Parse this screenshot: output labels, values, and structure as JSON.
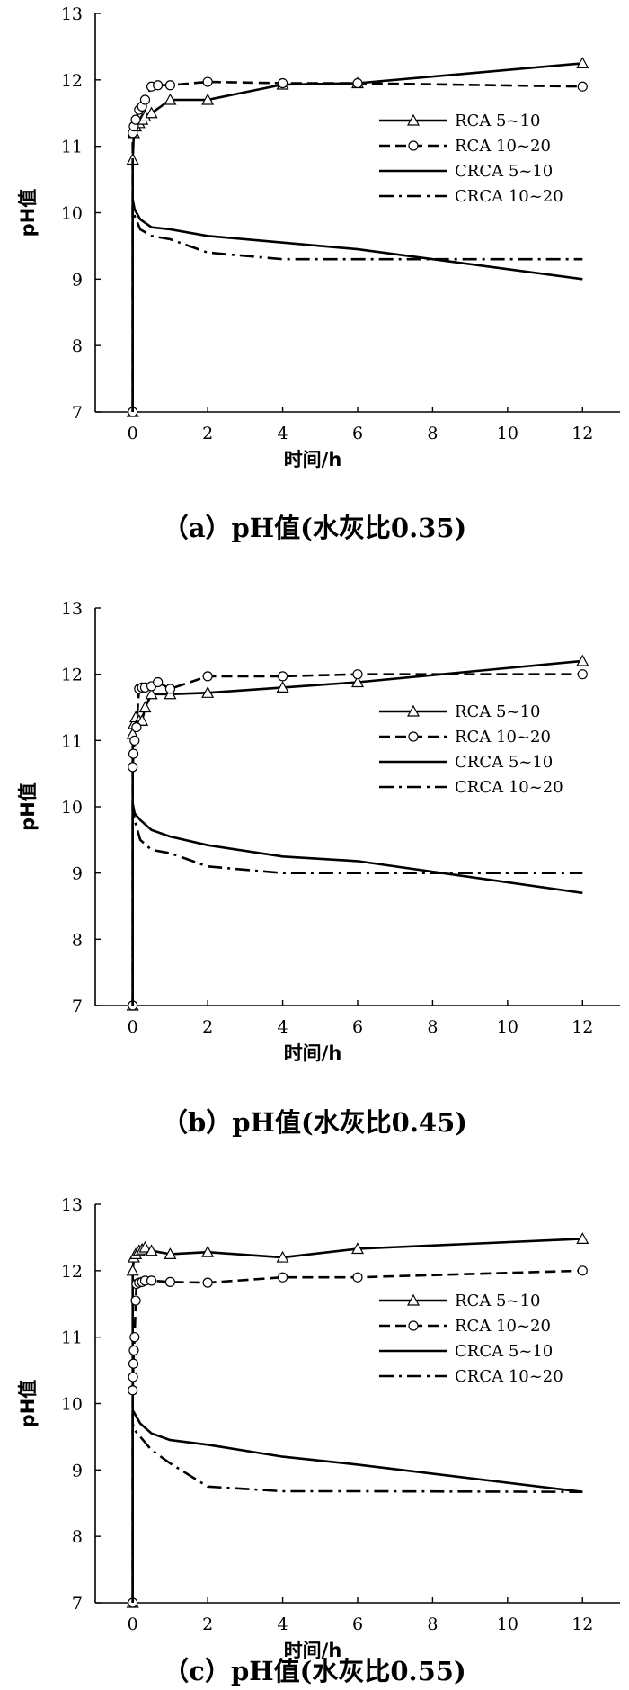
{
  "chart_data": [
    {
      "type": "line",
      "caption": "（a）pH值(水灰比0.35)",
      "xlabel": "时间/h",
      "ylabel": "pH值",
      "xlim": [
        -1,
        13
      ],
      "ylim": [
        7,
        13
      ],
      "xticks": [
        0,
        2,
        4,
        6,
        8,
        10,
        12
      ],
      "yticks": [
        7,
        8,
        9,
        10,
        11,
        12,
        13
      ],
      "grid": false,
      "legend_position": "right",
      "series": [
        {
          "name": "RCA 5~10",
          "style": "solid",
          "marker": "triangle",
          "x": [
            0,
            0,
            0.03,
            0.08,
            0.17,
            0.25,
            0.33,
            0.5,
            1,
            2,
            4,
            6,
            12
          ],
          "y": [
            7.0,
            10.8,
            11.2,
            11.3,
            11.35,
            11.4,
            11.45,
            11.5,
            11.7,
            11.7,
            11.93,
            11.95,
            12.25
          ]
        },
        {
          "name": "RCA 10~20",
          "style": "dashed",
          "marker": "circle",
          "x": [
            0,
            0,
            0.03,
            0.08,
            0.17,
            0.25,
            0.33,
            0.5,
            0.67,
            1,
            2,
            4,
            6,
            12
          ],
          "y": [
            7.0,
            11.2,
            11.3,
            11.4,
            11.55,
            11.6,
            11.7,
            11.9,
            11.92,
            11.92,
            11.97,
            11.95,
            11.95,
            11.9
          ]
        },
        {
          "name": "CRCA 5~10",
          "style": "solid",
          "marker": "none",
          "x": [
            0,
            0,
            0.05,
            0.2,
            0.5,
            1,
            2,
            4,
            6,
            12
          ],
          "y": [
            7.0,
            10.2,
            10.05,
            9.9,
            9.78,
            9.75,
            9.65,
            9.55,
            9.45,
            9.0
          ]
        },
        {
          "name": "CRCA 10~20",
          "style": "dashdot",
          "marker": "none",
          "x": [
            0,
            0,
            0.05,
            0.2,
            0.5,
            1,
            2,
            4,
            6,
            12
          ],
          "y": [
            7.0,
            10.1,
            9.95,
            9.75,
            9.65,
            9.6,
            9.4,
            9.3,
            9.3,
            9.3
          ]
        }
      ]
    },
    {
      "type": "line",
      "caption": "（b）pH值(水灰比0.45)",
      "xlabel": "时间/h",
      "ylabel": "pH值",
      "xlim": [
        -1,
        13
      ],
      "ylim": [
        7,
        13
      ],
      "xticks": [
        0,
        2,
        4,
        6,
        8,
        10,
        12
      ],
      "yticks": [
        7,
        8,
        9,
        10,
        11,
        12,
        13
      ],
      "grid": false,
      "legend_position": "right",
      "series": [
        {
          "name": "RCA 5~10",
          "style": "solid",
          "marker": "triangle",
          "x": [
            0,
            0,
            0.03,
            0.08,
            0.17,
            0.25,
            0.33,
            0.5,
            1,
            2,
            4,
            6,
            12
          ],
          "y": [
            7.0,
            11.1,
            11.25,
            11.35,
            11.3,
            11.3,
            11.5,
            11.7,
            11.7,
            11.72,
            11.8,
            11.88,
            12.2
          ]
        },
        {
          "name": "RCA 10~20",
          "style": "dashed",
          "marker": "circle",
          "x": [
            0,
            0,
            0.02,
            0.05,
            0.1,
            0.17,
            0.25,
            0.33,
            0.5,
            0.67,
            1,
            2,
            4,
            6,
            12
          ],
          "y": [
            7.0,
            10.6,
            10.8,
            11.0,
            11.2,
            11.78,
            11.8,
            11.8,
            11.82,
            11.88,
            11.78,
            11.97,
            11.97,
            12.0,
            12.0
          ]
        },
        {
          "name": "CRCA 5~10",
          "style": "solid",
          "marker": "none",
          "x": [
            0,
            0,
            0.05,
            0.2,
            0.5,
            1,
            2,
            4,
            6,
            12
          ],
          "y": [
            7.0,
            10.05,
            9.9,
            9.8,
            9.65,
            9.55,
            9.42,
            9.25,
            9.18,
            8.7
          ]
        },
        {
          "name": "CRCA 10~20",
          "style": "dashdot",
          "marker": "none",
          "x": [
            0,
            0,
            0.05,
            0.2,
            0.5,
            1,
            2,
            4,
            6,
            12
          ],
          "y": [
            7.0,
            10.0,
            9.8,
            9.5,
            9.35,
            9.3,
            9.1,
            9.0,
            9.0,
            9.0
          ]
        }
      ]
    },
    {
      "type": "line",
      "caption": "（c）pH值(水灰比0.55)",
      "xlabel": "时间/h",
      "ylabel": "pH值",
      "xlim": [
        -1,
        13
      ],
      "ylim": [
        7,
        13
      ],
      "xticks": [
        0,
        2,
        4,
        6,
        8,
        10,
        12
      ],
      "yticks": [
        7,
        8,
        9,
        10,
        11,
        12,
        13
      ],
      "grid": false,
      "legend_position": "right",
      "series": [
        {
          "name": "RCA 5~10",
          "style": "solid",
          "marker": "triangle",
          "x": [
            0,
            0,
            0.03,
            0.08,
            0.17,
            0.25,
            0.33,
            0.5,
            1,
            2,
            4,
            6,
            12
          ],
          "y": [
            7.0,
            12.0,
            12.2,
            12.25,
            12.3,
            12.32,
            12.35,
            12.3,
            12.25,
            12.28,
            12.2,
            12.33,
            12.48
          ]
        },
        {
          "name": "RCA 10~20",
          "style": "dashed",
          "marker": "circle",
          "x": [
            0,
            0,
            0.01,
            0.02,
            0.03,
            0.05,
            0.08,
            0.1,
            0.17,
            0.25,
            0.33,
            0.5,
            1,
            2,
            4,
            6,
            12
          ],
          "y": [
            7.0,
            10.2,
            10.4,
            10.6,
            10.8,
            11.0,
            11.55,
            11.8,
            11.82,
            11.83,
            11.85,
            11.85,
            11.83,
            11.82,
            11.9,
            11.9,
            12.0
          ]
        },
        {
          "name": "CRCA 5~10",
          "style": "solid",
          "marker": "none",
          "x": [
            0,
            0,
            0.05,
            0.2,
            0.5,
            1,
            2,
            4,
            6,
            12
          ],
          "y": [
            7.0,
            9.9,
            9.85,
            9.7,
            9.55,
            9.45,
            9.38,
            9.2,
            9.08,
            8.67
          ]
        },
        {
          "name": "CRCA 10~20",
          "style": "dashdot",
          "marker": "none",
          "x": [
            0,
            0,
            0.05,
            0.2,
            0.5,
            1,
            2,
            4,
            6,
            12
          ],
          "y": [
            7.0,
            9.7,
            9.6,
            9.5,
            9.3,
            9.1,
            8.75,
            8.68,
            8.68,
            8.67
          ]
        }
      ]
    }
  ]
}
